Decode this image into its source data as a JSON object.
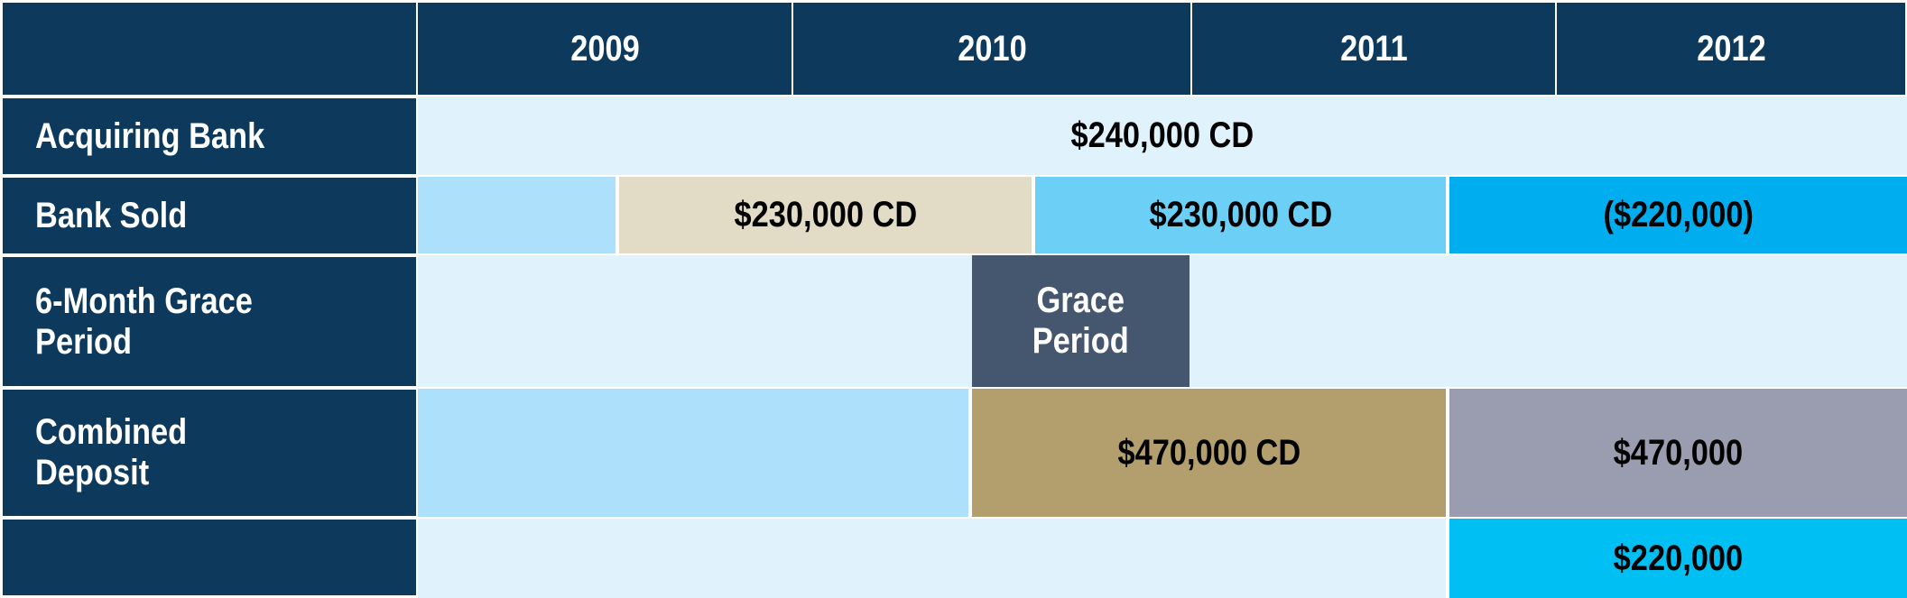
{
  "header": {
    "years": [
      "2009",
      "2010",
      "2011",
      "2012"
    ]
  },
  "rows": [
    {
      "label": "Acquiring Bank"
    },
    {
      "label": "Bank Sold"
    },
    {
      "label": "6-Month Grace Period",
      "label_line1": "6-Month Grace",
      "label_line2": "Period"
    },
    {
      "label": "Combined Deposit",
      "label_line1": "Combined",
      "label_line2": "Deposit"
    },
    {
      "label": ""
    }
  ],
  "bars": {
    "acquiring_cd": "$240,000 CD",
    "sold_cd_1": "$230,000 CD",
    "sold_cd_2": "$230,000 CD",
    "sold_withdrawal": "($220,000)",
    "grace_line1": "Grace",
    "grace_line2": "Period",
    "combined_cd": "$470,000 CD",
    "combined_amount": "$470,000",
    "extra_amount": "$220,000"
  },
  "colors": {
    "navy": "#0d3a5c",
    "pale_blue": "#e0f2fc",
    "light_blue": "#ade1fb",
    "tan": "#e2dbc5",
    "sky_blue": "#6bcff6",
    "bright_blue": "#00aeef",
    "grace_slate": "#45566f",
    "khaki": "#b39e6e",
    "gray_lavender": "#9a9caf",
    "cyan": "#00c0f3"
  }
}
